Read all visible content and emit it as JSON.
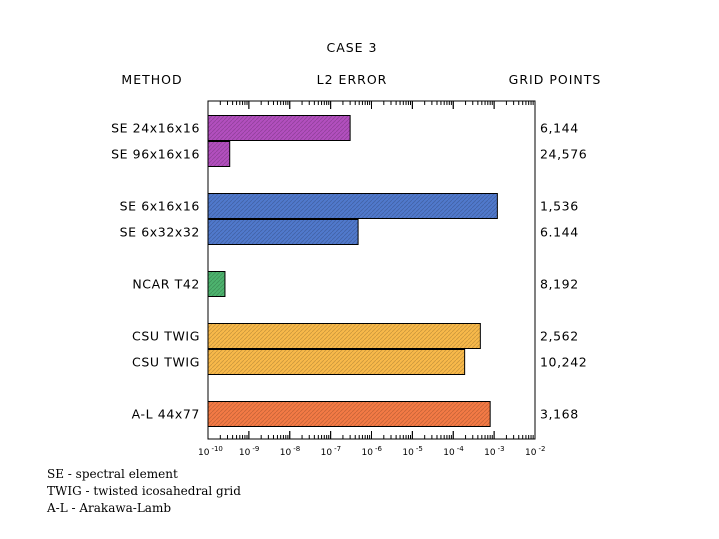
{
  "chart_data": {
    "type": "bar",
    "orientation": "horizontal",
    "title": "CASE 3",
    "column_headers": {
      "method": "METHOD",
      "error": "L2 ERROR",
      "grid": "GRID POINTS"
    },
    "x_scale": "log",
    "xlim": [
      1e-10,
      0.01
    ],
    "x_ticks": [
      {
        "base": "10",
        "exp": "-10"
      },
      {
        "base": "10",
        "exp": "-9"
      },
      {
        "base": "10",
        "exp": "-8"
      },
      {
        "base": "10",
        "exp": "-7"
      },
      {
        "base": "10",
        "exp": "-6"
      },
      {
        "base": "10",
        "exp": "-5"
      },
      {
        "base": "10",
        "exp": "-4"
      },
      {
        "base": "10",
        "exp": "-3"
      },
      {
        "base": "10",
        "exp": "-2"
      }
    ],
    "bars": [
      {
        "method": "SE 24x16x16",
        "value": 3e-07,
        "grid_points": "6,144",
        "color": "#b24fbe"
      },
      {
        "method": "SE 96x16x16",
        "value": 3.4e-10,
        "grid_points": "24,576",
        "color": "#b24fbe"
      },
      {
        "method": "SE 6x16x16",
        "value": 0.0012,
        "grid_points": "1,536",
        "color": "#5079cc"
      },
      {
        "method": "SE 6x32x32",
        "value": 4.7e-07,
        "grid_points": "6.144",
        "color": "#5079cc"
      },
      {
        "method": "NCAR T42",
        "value": 2.6e-10,
        "grid_points": "8,192",
        "color": "#4db36e"
      },
      {
        "method": "CSU TWIG",
        "value": 0.00046,
        "grid_points": "2,562",
        "color": "#f8b94a"
      },
      {
        "method": "CSU TWIG",
        "value": 0.00019,
        "grid_points": "10,242",
        "color": "#f8b94a"
      },
      {
        "method": "A-L 44x77",
        "value": 0.0008,
        "grid_points": "3,168",
        "color": "#f37a45"
      }
    ],
    "legend_notes": [
      "SE - spectral  element",
      "TWIG - twisted  icosahedral  grid",
      "A-L - Arakawa-Lamb"
    ]
  }
}
